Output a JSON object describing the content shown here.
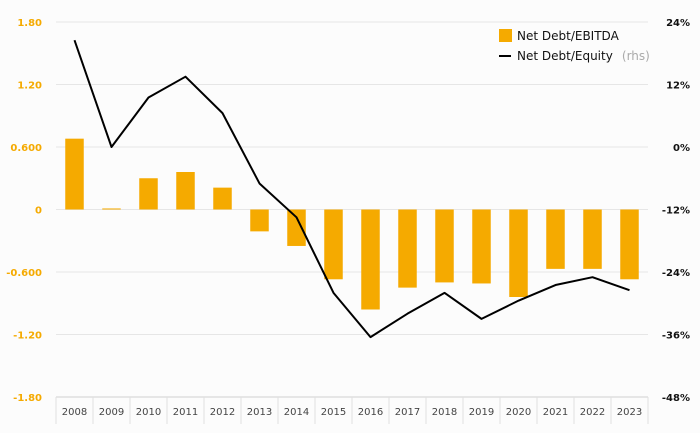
{
  "chart_data": {
    "type": "bar",
    "categories": [
      "2008",
      "2009",
      "2010",
      "2011",
      "2012",
      "2013",
      "2014",
      "2015",
      "2016",
      "2017",
      "2018",
      "2019",
      "2020",
      "2021",
      "2022",
      "2023"
    ],
    "series": [
      {
        "name": "Net Debt/EBITDA",
        "type": "bar",
        "axis": "left",
        "color": "#f5aa00",
        "values": [
          0.68,
          0.01,
          0.3,
          0.36,
          0.21,
          -0.21,
          -0.35,
          -0.67,
          -0.96,
          -0.75,
          -0.7,
          -0.71,
          -0.84,
          -0.57,
          -0.57,
          -0.67
        ]
      },
      {
        "name": "Net Debt/Equity",
        "name_note": "(rhs)",
        "type": "line",
        "axis": "right",
        "color": "#000000",
        "values": [
          20.5,
          0.0,
          9.5,
          13.5,
          6.5,
          -7.0,
          -13.5,
          -28.0,
          -36.5,
          -32.0,
          -28.0,
          -33.0,
          -29.5,
          -26.5,
          -25.0,
          -27.5
        ]
      }
    ],
    "y_left": {
      "ticks": [
        "1.80",
        "1.20",
        "0.600",
        "0",
        "-0.600",
        "-1.20",
        "-1.80"
      ],
      "range": [
        -1.8,
        1.8
      ]
    },
    "y_right": {
      "ticks": [
        "24%",
        "12%",
        "0%",
        "-12%",
        "-24%",
        "-36%",
        "-48%"
      ],
      "range": [
        -48,
        24
      ]
    },
    "legend_position": "top-right",
    "grid": true
  }
}
